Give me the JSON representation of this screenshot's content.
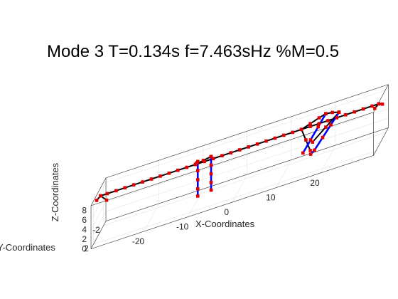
{
  "chart_data": {
    "type": "line3d",
    "title": "Mode 3   T=0.134s  f=7.463sHz  %M=0.5",
    "xlabel": "X-Coordinates",
    "ylabel": "Y-Coordinates",
    "zlabel": "Z-Coordinates",
    "xticks": [
      "-20",
      "-10",
      "0",
      "10",
      "20"
    ],
    "yticks": [
      "2",
      "-2"
    ],
    "zticks": [
      "0",
      "2",
      "4",
      "6",
      "8"
    ],
    "xlim": [
      -32,
      32
    ],
    "ylim": [
      -3,
      3
    ],
    "zlim": [
      0,
      9
    ],
    "grid": true,
    "colors": {
      "deck": "#000000",
      "piers": "#0000ff",
      "nodes": "#e00000",
      "box": "#262626",
      "grid": "#dfdfdf"
    },
    "series": [
      {
        "role": "deck",
        "points": [
          [
            -31.5,
            0,
            8
          ],
          [
            -30,
            0,
            8
          ],
          [
            -28,
            0,
            8
          ],
          [
            -26,
            0,
            8
          ],
          [
            -24,
            0,
            8
          ],
          [
            -22,
            0,
            8
          ],
          [
            -20,
            0,
            8
          ],
          [
            -18,
            0,
            8
          ],
          [
            -16,
            0,
            8
          ],
          [
            -14,
            0,
            8
          ],
          [
            -12,
            0,
            8
          ],
          [
            -10,
            0,
            8
          ],
          [
            -8,
            0,
            8
          ],
          [
            -6,
            0,
            8
          ],
          [
            -4,
            0,
            8
          ],
          [
            -2,
            0,
            8
          ],
          [
            0,
            0,
            8
          ],
          [
            2,
            0,
            8
          ],
          [
            4,
            0,
            8
          ],
          [
            6,
            0,
            8
          ],
          [
            8,
            0,
            8
          ],
          [
            10,
            0,
            8
          ],
          [
            12,
            0,
            8
          ],
          [
            14,
            0,
            8
          ],
          [
            16,
            0,
            8
          ],
          [
            18,
            0,
            8
          ],
          [
            20,
            0,
            8
          ],
          [
            22,
            0,
            8
          ],
          [
            24,
            0,
            8
          ],
          [
            26,
            0,
            8
          ],
          [
            28,
            0,
            8
          ],
          [
            30,
            0,
            8
          ],
          [
            31.5,
            0,
            8
          ]
        ]
      },
      {
        "role": "deck",
        "points": [
          [
            -31.5,
            0,
            8
          ],
          [
            -31.5,
            1.6,
            8.6
          ]
        ]
      },
      {
        "role": "deck",
        "points": [
          [
            -31.5,
            0,
            8
          ],
          [
            -31,
            -1.5,
            5.5
          ]
        ]
      },
      {
        "role": "deck",
        "points": [
          [
            31.5,
            0,
            8
          ],
          [
            31.5,
            1.6,
            8.6
          ]
        ]
      },
      {
        "role": "deck",
        "points": [
          [
            31.5,
            0,
            8
          ],
          [
            31.5,
            -1.5,
            6.5
          ]
        ]
      },
      {
        "role": "deck",
        "points": [
          [
            -10,
            0,
            8
          ],
          [
            -10.2,
            -0.8,
            7.6
          ],
          [
            -10.4,
            -1.6,
            7.2
          ]
        ]
      },
      {
        "role": "deck",
        "points": [
          [
            -10,
            0,
            8
          ],
          [
            -8.8,
            -1,
            7.5
          ],
          [
            -7.6,
            -2,
            7
          ]
        ]
      },
      {
        "role": "deck",
        "points": [
          [
            14,
            0,
            8
          ],
          [
            15,
            0,
            5.5
          ],
          [
            16,
            0,
            3
          ]
        ]
      },
      {
        "role": "deck",
        "points": [
          [
            14,
            0,
            8
          ],
          [
            16,
            0,
            8.6
          ],
          [
            18,
            0,
            9.2
          ],
          [
            19.5,
            0,
            9.6
          ]
        ]
      },
      {
        "role": "deck",
        "points": [
          [
            19.5,
            0,
            9.6
          ],
          [
            21,
            0,
            9.4
          ],
          [
            22.5,
            0,
            9
          ]
        ]
      },
      {
        "role": "deck",
        "points": [
          [
            22.5,
            0,
            9
          ],
          [
            19.5,
            0,
            6.8
          ],
          [
            16.5,
            0,
            4.6
          ]
        ]
      },
      {
        "role": "pier",
        "points": [
          [
            -10.4,
            -1.6,
            7.2
          ],
          [
            -10.4,
            -1.6,
            5.3
          ],
          [
            -10.4,
            -1.6,
            3.4
          ],
          [
            -10.4,
            -1.6,
            1.5
          ],
          [
            -10.4,
            -1.6,
            0
          ]
        ]
      },
      {
        "role": "pier",
        "points": [
          [
            -7.6,
            -2,
            7
          ],
          [
            -7.6,
            -2,
            5.2
          ],
          [
            -7.6,
            -2,
            3.4
          ],
          [
            -7.6,
            -2,
            1.6
          ],
          [
            -7.6,
            -2,
            0
          ]
        ]
      },
      {
        "role": "pier",
        "points": [
          [
            19.5,
            0,
            9.6
          ],
          [
            17.5,
            -0.5,
            7
          ],
          [
            15.5,
            -1,
            4.4
          ],
          [
            13.5,
            -1.5,
            1.8
          ]
        ]
      },
      {
        "role": "pier",
        "points": [
          [
            22.5,
            0,
            9
          ],
          [
            20.2,
            -0.8,
            6.3
          ],
          [
            17.9,
            -1.6,
            3.6
          ],
          [
            15.6,
            -2.4,
            0.9
          ],
          [
            14.5,
            -2.8,
            0
          ]
        ]
      }
    ]
  }
}
